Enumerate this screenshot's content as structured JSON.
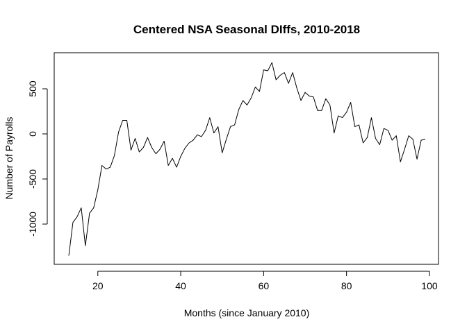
{
  "chart_data": {
    "type": "line",
    "title": "Centered NSA Seasonal DIffs, 2010-2018",
    "xlabel": "Months (since January 2010)",
    "ylabel": "Number of Payrolls",
    "xlim": [
      13,
      99
    ],
    "ylim": [
      -1350,
      790
    ],
    "x_ticks": [
      20,
      40,
      60,
      80,
      100
    ],
    "y_ticks": [
      -1000,
      -500,
      0,
      500
    ],
    "grid": false,
    "legend": "none",
    "line_color": "#000000",
    "series": [
      {
        "x": [
          13,
          14,
          15,
          16,
          17,
          18,
          19,
          20,
          21,
          22,
          23,
          24,
          25,
          26,
          27,
          28,
          29,
          30,
          31,
          32,
          33,
          34,
          35,
          36,
          37,
          38,
          39,
          40,
          41,
          42,
          43,
          44,
          45,
          46,
          47,
          48,
          49,
          50,
          51,
          52,
          53,
          54,
          55,
          56,
          57,
          58,
          59,
          60,
          61,
          62,
          63,
          64,
          65,
          66,
          67,
          68,
          69,
          70,
          71,
          72,
          73,
          74,
          75,
          76,
          77,
          78,
          79,
          80,
          81,
          82,
          83,
          84,
          85,
          86,
          87,
          88,
          89,
          90,
          91,
          92,
          93,
          94,
          95,
          96,
          97,
          98,
          99
        ],
        "values": [
          -1350,
          -980,
          -920,
          -820,
          -1240,
          -880,
          -820,
          -620,
          -350,
          -390,
          -370,
          -240,
          20,
          150,
          150,
          -180,
          -50,
          -200,
          -150,
          -40,
          -150,
          -220,
          -170,
          -80,
          -350,
          -270,
          -370,
          -250,
          -160,
          -100,
          -70,
          -10,
          -30,
          40,
          180,
          10,
          80,
          -210,
          -60,
          80,
          100,
          270,
          370,
          320,
          400,
          520,
          470,
          710,
          700,
          790,
          600,
          650,
          680,
          560,
          680,
          510,
          370,
          460,
          420,
          410,
          260,
          260,
          390,
          320,
          10,
          200,
          180,
          240,
          350,
          80,
          100,
          -100,
          -40,
          180,
          -50,
          -120,
          60,
          40,
          -70,
          -20,
          -310,
          -170,
          -20,
          -60,
          -280,
          -70,
          -60
        ]
      }
    ]
  }
}
